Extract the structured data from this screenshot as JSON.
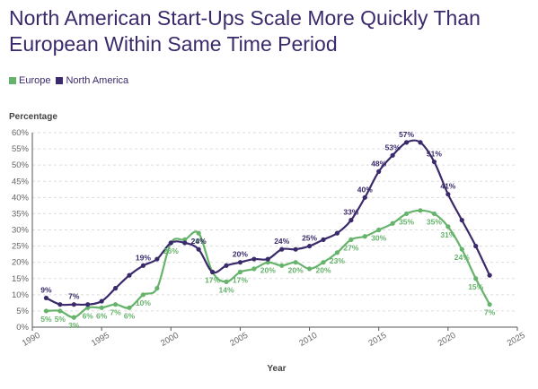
{
  "chart_data": {
    "type": "line",
    "title": "North American Start-Ups Scale More Quickly Than European Within Same Time Period",
    "ylabel": "Percentage",
    "xlabel": "Year",
    "xlim": [
      1990,
      2025
    ],
    "ylim": [
      0,
      60
    ],
    "x_ticks": [
      "1990",
      "1995",
      "2000",
      "2005",
      "2010",
      "2015",
      "2020",
      "2025"
    ],
    "y_ticks": [
      "0%",
      "5%",
      "10%",
      "15%",
      "20%",
      "25%",
      "30%",
      "35%",
      "40%",
      "45%",
      "50%",
      "55%",
      "60%"
    ],
    "grid": true,
    "legend_position": "top-left",
    "series": [
      {
        "name": "Europe",
        "color": "#66b36b",
        "x": [
          1991,
          1992,
          1993,
          1994,
          1995,
          1996,
          1997,
          1998,
          1999,
          2000,
          2001,
          2002,
          2003,
          2004,
          2005,
          2006,
          2007,
          2008,
          2009,
          2010,
          2011,
          2012,
          2013,
          2014,
          2015,
          2016,
          2017,
          2018,
          2019,
          2020,
          2021,
          2022,
          2023
        ],
        "values": [
          5,
          5,
          3,
          6,
          6,
          7,
          6,
          10,
          12,
          26,
          27,
          29,
          17,
          14,
          17,
          18,
          20,
          19,
          20,
          18,
          20,
          23,
          27,
          28,
          30,
          32,
          35,
          36,
          35,
          31,
          24,
          15,
          7
        ],
        "labels": [
          "5%",
          "5%",
          "3%",
          "6%",
          "6%",
          "7%",
          "6%",
          "10%",
          "",
          "26%",
          "",
          "29%",
          "17%",
          "14%",
          "17%",
          "",
          "20%",
          "",
          "20%",
          "",
          "20%",
          "23%",
          "27%",
          "",
          "30%",
          "",
          "35%",
          "",
          "35%",
          "31%",
          "24%",
          "15%",
          "7%"
        ]
      },
      {
        "name": "North America",
        "color": "#3b2a6b",
        "x": [
          1991,
          1992,
          1993,
          1994,
          1995,
          1996,
          1997,
          1998,
          1999,
          2000,
          2001,
          2002,
          2003,
          2004,
          2005,
          2006,
          2007,
          2008,
          2009,
          2010,
          2011,
          2012,
          2013,
          2014,
          2015,
          2016,
          2017,
          2018,
          2019,
          2020,
          2021,
          2022,
          2023
        ],
        "values": [
          9,
          7,
          7,
          7,
          8,
          12,
          16,
          19,
          21,
          26,
          26,
          24,
          17,
          19,
          20,
          21,
          21,
          24,
          24,
          25,
          27,
          29,
          33,
          40,
          48,
          53,
          57,
          57,
          51,
          41,
          33,
          25,
          16
        ],
        "labels": [
          "9%",
          "",
          "7%",
          "",
          "",
          "",
          "",
          "19%",
          "",
          "",
          "",
          "24%",
          "",
          "",
          "20%",
          "",
          "",
          "24%",
          "",
          "25%",
          "",
          "",
          "33%",
          "40%",
          "48%",
          "53%",
          "57%",
          "",
          "51%",
          "41%",
          "",
          "",
          ""
        ]
      }
    ]
  }
}
